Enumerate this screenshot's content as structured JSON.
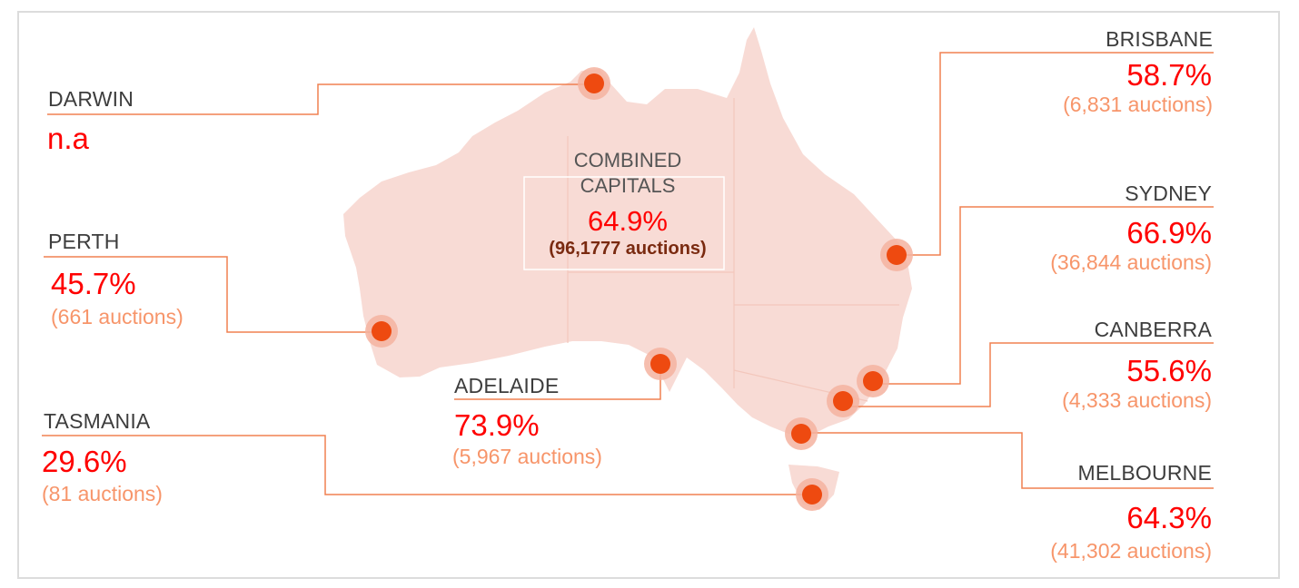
{
  "colors": {
    "land": "#f8dbd5",
    "connector": "#f08050",
    "dot": "#ee4a10",
    "dot_halo": "#f4b3a0",
    "percent": "#ff0000",
    "auctions": "#f7956a",
    "city_label": "#3d3d3d"
  },
  "combined": {
    "title_line1": "COMBINED",
    "title_line2": "CAPITALS",
    "percent": "64.9%",
    "auctions": "(96,1777 auctions)"
  },
  "cities": [
    {
      "id": "darwin",
      "name": "DARWIN",
      "percent": "n.a",
      "auctions": ""
    },
    {
      "id": "perth",
      "name": "PERTH",
      "percent": "45.7%",
      "auctions": "(661 auctions)"
    },
    {
      "id": "adelaide",
      "name": "ADELAIDE",
      "percent": "73.9%",
      "auctions": "(5,967 auctions)"
    },
    {
      "id": "tasmania",
      "name": "TASMANIA",
      "percent": "29.6%",
      "auctions": "(81 auctions)"
    },
    {
      "id": "brisbane",
      "name": "BRISBANE",
      "percent": "58.7%",
      "auctions": "(6,831 auctions)"
    },
    {
      "id": "sydney",
      "name": "SYDNEY",
      "percent": "66.9%",
      "auctions": "(36,844 auctions)"
    },
    {
      "id": "canberra",
      "name": "CANBERRA",
      "percent": "55.6%",
      "auctions": "(4,333 auctions)"
    },
    {
      "id": "melbourne",
      "name": "MELBOURNE",
      "percent": "64.3%",
      "auctions": "(41,302 auctions)"
    }
  ]
}
